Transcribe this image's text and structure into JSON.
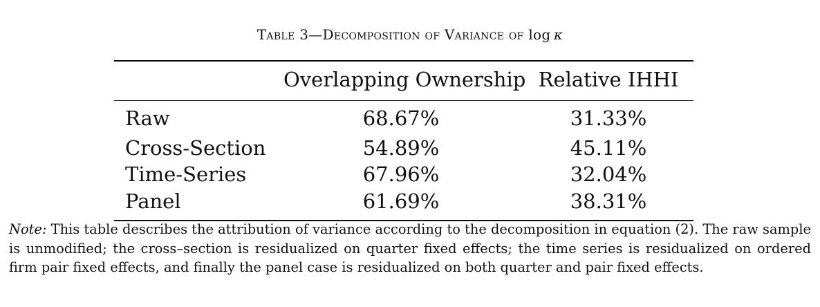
{
  "caption": {
    "prefix": "Table 3—Decomposition of Variance of ",
    "log": "log",
    "symbol": "κ"
  },
  "table": {
    "columns": [
      "",
      "Overlapping Ownership",
      "Relative IHHI"
    ],
    "rows": [
      {
        "label": "Raw",
        "overlapping": "68.67%",
        "relative": "31.33%"
      },
      {
        "label": "Cross-Section",
        "overlapping": "54.89%",
        "relative": "45.11%"
      },
      {
        "label": "Time-Series",
        "overlapping": "67.96%",
        "relative": "32.04%"
      },
      {
        "label": "Panel",
        "overlapping": "61.69%",
        "relative": "38.31%"
      }
    ]
  },
  "note": {
    "label": "Note:",
    "text": "This table describes the attribution of variance according to the decomposition in equation (2). The raw sample is unmodified; the cross–section is residualized on quarter fixed effects; the time series is residualized on ordered firm pair fixed effects, and finally the panel case is residualized on both quarter and pair fixed effects."
  }
}
